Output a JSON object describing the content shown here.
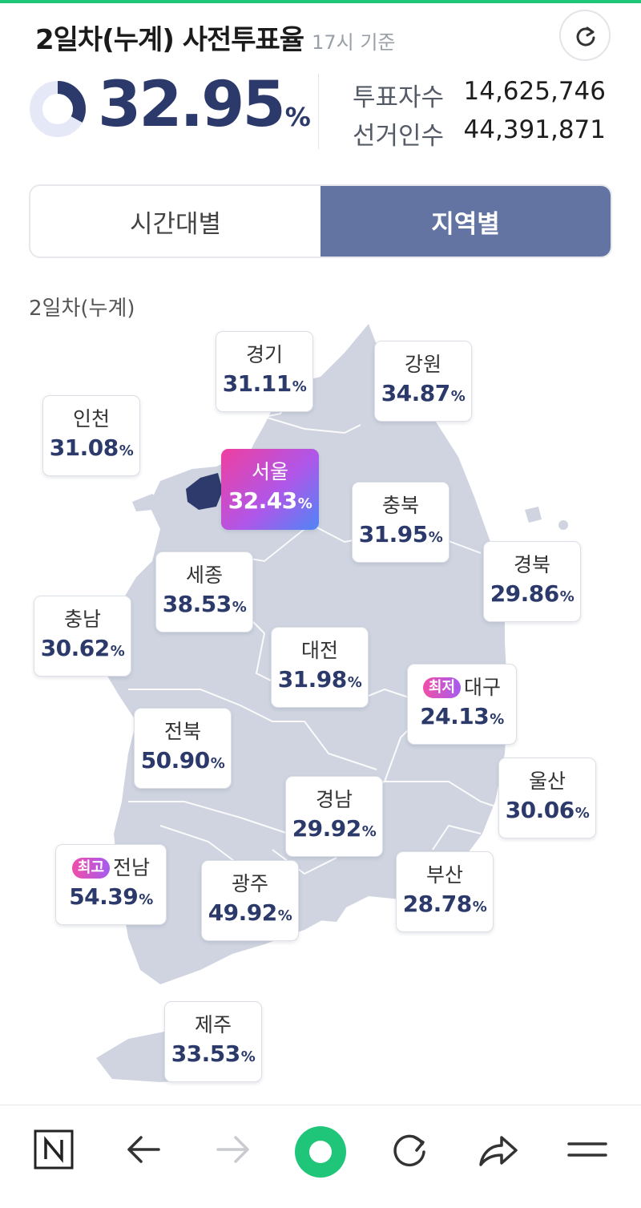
{
  "header": {
    "title": "2일차(누계) 사전투표율",
    "time_label": "17시 기준"
  },
  "summary": {
    "rate": "32.95",
    "rate_value": 32.95,
    "rate_unit": "%",
    "voters_label": "투표자수",
    "voters_value": "14,625,746",
    "electors_label": "선거인수",
    "electors_value": "44,391,871"
  },
  "tabs": [
    {
      "label": "시간대별",
      "active": false
    },
    {
      "label": "지역별",
      "active": true
    }
  ],
  "map": {
    "section_label": "2일차(누계)",
    "unit": "%",
    "regions": {
      "gyeonggi": {
        "name": "경기",
        "value": "31.11"
      },
      "gangwon": {
        "name": "강원",
        "value": "34.87"
      },
      "incheon": {
        "name": "인천",
        "value": "31.08"
      },
      "seoul": {
        "name": "서울",
        "value": "32.43"
      },
      "chungbuk": {
        "name": "충북",
        "value": "31.95"
      },
      "gyeongbuk": {
        "name": "경북",
        "value": "29.86"
      },
      "sejong": {
        "name": "세종",
        "value": "38.53"
      },
      "chungnam": {
        "name": "충남",
        "value": "30.62"
      },
      "daejeon": {
        "name": "대전",
        "value": "31.98"
      },
      "daegu": {
        "name": "대구",
        "value": "24.13",
        "badge": "최저"
      },
      "jeonbuk": {
        "name": "전북",
        "value": "50.90"
      },
      "gyeongnam": {
        "name": "경남",
        "value": "29.92"
      },
      "ulsan": {
        "name": "울산",
        "value": "30.06"
      },
      "jeonnam": {
        "name": "전남",
        "value": "54.39",
        "badge": "최고"
      },
      "gwangju": {
        "name": "광주",
        "value": "49.92"
      },
      "busan": {
        "name": "부산",
        "value": "28.78"
      },
      "jeju": {
        "name": "제주",
        "value": "33.53"
      }
    }
  },
  "colors": {
    "accent": "#6373a2",
    "rate_text": "#2b3a6a",
    "map_fill": "#cfd4e0",
    "seoul_fill": "#2d3a6b",
    "browser_green": "#1fc67a"
  },
  "bottom_nav": [
    {
      "icon": "naver-n-icon"
    },
    {
      "icon": "back-arrow-icon"
    },
    {
      "icon": "forward-arrow-icon"
    },
    {
      "icon": "green-dot-icon"
    },
    {
      "icon": "reload-icon"
    },
    {
      "icon": "share-icon"
    },
    {
      "icon": "menu-icon"
    }
  ]
}
